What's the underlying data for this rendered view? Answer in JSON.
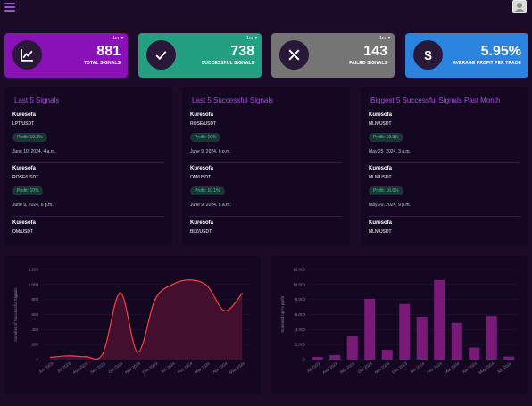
{
  "stats": [
    {
      "range": "1m",
      "value": "881",
      "label": "TOTAL SIGNALS",
      "icon": "chart-line-icon",
      "color": "#8a10b8"
    },
    {
      "range": "1m",
      "value": "738",
      "label": "SUCCESSFUL SIGNALS",
      "icon": "check-icon",
      "color": "#22a081"
    },
    {
      "range": "1m",
      "value": "143",
      "label": "FAILED SIGNALS",
      "icon": "close-icon",
      "color": "#757575"
    },
    {
      "range": "",
      "value": "5.95%",
      "label": "AVERAGE PROFIT PER TRADE",
      "icon": "dollar-icon",
      "color": "#2b83e0"
    }
  ],
  "panels": [
    {
      "title": "Last 5 Signals",
      "items": [
        {
          "name": "Kuresofa",
          "pair": "LPT/USDT",
          "profit": "Profit: 19.3%",
          "date": "June 10, 2024, 4 a.m."
        },
        {
          "name": "Kuresofa",
          "pair": "ROSE/USDT",
          "profit": "Profit: 10%",
          "date": "June 9, 2024, 6 p.m."
        },
        {
          "name": "Kuresofa",
          "pair": "OM/USDT"
        }
      ]
    },
    {
      "title": "Last 5 Successful Signals",
      "items": [
        {
          "name": "Kuresofa",
          "pair": "ROSE/USDT",
          "profit": "Profit: 10%",
          "date": "June 9, 2024, 6 p.m."
        },
        {
          "name": "Kuresofa",
          "pair": "OM/USDT",
          "profit": "Profit: 10.1%",
          "date": "June 9, 2024, 8 a.m."
        },
        {
          "name": "Kuresofa",
          "pair": "BLZ/USDT"
        }
      ]
    },
    {
      "title": "Biggest 5 Successful Signals Past Month",
      "items": [
        {
          "name": "Kuresofa",
          "pair": "MLN/USDT",
          "profit": "Profit: 19.3%",
          "date": "May 25, 2024, 3 a.m."
        },
        {
          "name": "Kuresofa",
          "pair": "MLN/USDT",
          "profit": "Profit: 16.6%",
          "date": "May 20, 2024, 9 p.m."
        },
        {
          "name": "Kuresofa",
          "pair": "MLN/USDT"
        }
      ]
    }
  ],
  "chart_data": [
    {
      "type": "area",
      "ylabel": "Number of Successful Signals",
      "ylim": [
        0,
        1200
      ],
      "yticks": [
        "0",
        "200",
        "400",
        "600",
        "800",
        "1,000",
        "1,200"
      ],
      "x": [
        "Jun 2023",
        "Jul 2023",
        "Aug 2023",
        "Sep 2023",
        "Oct 2023",
        "Nov 2023",
        "Dec 2023",
        "Jan 2024",
        "Feb 2024",
        "Mar 2024",
        "Apr 2024",
        "May 2024"
      ],
      "values": [
        30,
        50,
        40,
        80,
        890,
        100,
        800,
        1000,
        1060,
        980,
        650,
        880
      ],
      "color": "#f0433e",
      "fill": "#4a1030"
    },
    {
      "type": "bar",
      "ylabel": "Summed up % profit",
      "ylim": [
        0,
        12000
      ],
      "yticks": [
        "0",
        "2,000",
        "4,000",
        "6,000",
        "8,000",
        "10,000",
        "12,000"
      ],
      "x": [
        "Jul 2023",
        "Aug 2023",
        "Sep 2023",
        "Oct 2023",
        "Nov 2023",
        "Dec 2023",
        "Jan 2024",
        "Feb 2024",
        "Mar 2024",
        "Apr 2024",
        "May 2024",
        "Jun 2024"
      ],
      "values": [
        350,
        600,
        3100,
        8100,
        1300,
        7400,
        5700,
        10600,
        4900,
        1600,
        5800,
        400
      ],
      "color": "#7a1a78"
    }
  ]
}
